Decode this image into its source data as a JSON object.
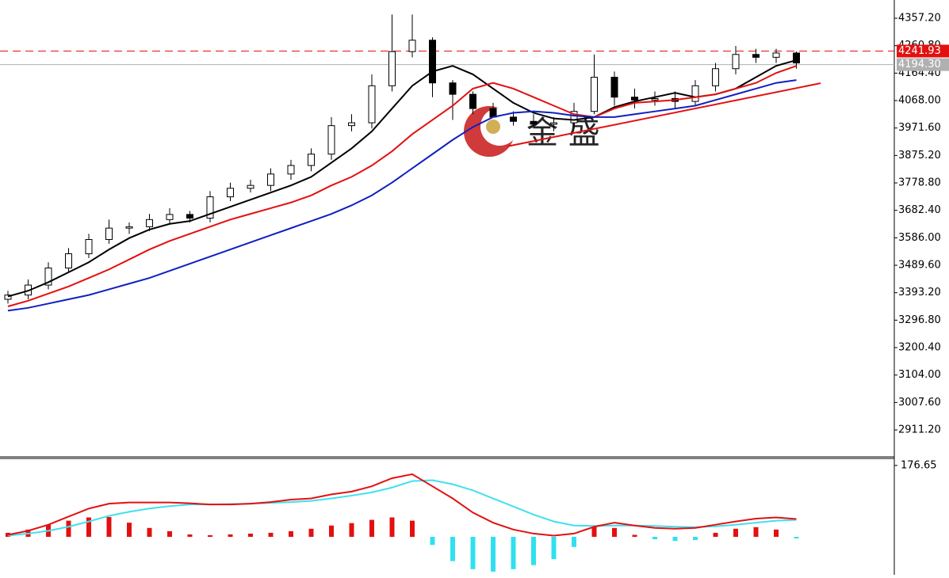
{
  "chart_data": [
    {
      "type": "candlestick",
      "watermark": "金 盛",
      "open": [
        3370,
        3385,
        3420,
        3480,
        3530,
        3580,
        3620,
        3625,
        3650,
        3668,
        3655,
        3730,
        3760,
        3770,
        3810,
        3840,
        3880,
        3980,
        3990,
        4120,
        4240,
        4280,
        4130,
        4090,
        4040,
        4010,
        3995,
        3985,
        3990,
        4030,
        4150,
        4080,
        4070,
        4075,
        4065,
        4120,
        4180,
        4230,
        4220,
        4235
      ],
      "high": [
        3400,
        3440,
        3500,
        3550,
        3600,
        3650,
        3640,
        3670,
        3690,
        3680,
        3750,
        3780,
        3790,
        3830,
        3860,
        3900,
        4010,
        4020,
        4160,
        4370,
        4370,
        4290,
        4140,
        4100,
        4060,
        4030,
        4020,
        4010,
        4060,
        4230,
        4170,
        4110,
        4100,
        4100,
        4140,
        4200,
        4260,
        4250,
        4250,
        4240
      ],
      "low": [
        3355,
        3370,
        3405,
        3465,
        3515,
        3565,
        3600,
        3610,
        3635,
        3640,
        3640,
        3715,
        3745,
        3750,
        3790,
        3820,
        3860,
        3960,
        3970,
        4100,
        4220,
        4080,
        4000,
        4020,
        4010,
        3980,
        3970,
        3960,
        3970,
        4020,
        4050,
        4040,
        4050,
        4040,
        4050,
        4100,
        4160,
        4200,
        4200,
        4180
      ],
      "close": [
        3385,
        3420,
        3480,
        3530,
        3580,
        3620,
        3625,
        3650,
        3668,
        3655,
        3730,
        3760,
        3770,
        3810,
        3840,
        3880,
        3980,
        3990,
        4120,
        4240,
        4280,
        4130,
        4090,
        4040,
        4010,
        3995,
        3985,
        3990,
        4030,
        4150,
        4080,
        4070,
        4075,
        4065,
        4120,
        4180,
        4230,
        4220,
        4235,
        4200
      ],
      "ma_lines": [
        {
          "color": "#000000",
          "values": [
            3380,
            3400,
            3430,
            3465,
            3500,
            3545,
            3585,
            3615,
            3635,
            3645,
            3670,
            3695,
            3720,
            3745,
            3770,
            3800,
            3850,
            3900,
            3960,
            4040,
            4120,
            4170,
            4190,
            4160,
            4110,
            4060,
            4025,
            4005,
            4000,
            4010,
            4045,
            4065,
            4080,
            4095,
            4080,
            4090,
            4110,
            4150,
            4190,
            4210
          ]
        },
        {
          "color": "#e31010",
          "values": [
            3345,
            3365,
            3390,
            3415,
            3445,
            3475,
            3510,
            3545,
            3575,
            3600,
            3625,
            3650,
            3670,
            3690,
            3710,
            3735,
            3770,
            3800,
            3840,
            3890,
            3950,
            4000,
            4050,
            4110,
            4130,
            4110,
            4080,
            4050,
            4020,
            4010,
            4040,
            4060,
            4065,
            4070,
            4080,
            4090,
            4110,
            4130,
            4165,
            4190
          ]
        },
        {
          "color": "#1020c0",
          "values": [
            3330,
            3340,
            3355,
            3370,
            3385,
            3405,
            3425,
            3445,
            3470,
            3495,
            3520,
            3545,
            3570,
            3595,
            3620,
            3645,
            3670,
            3700,
            3735,
            3780,
            3830,
            3880,
            3930,
            3975,
            4010,
            4025,
            4030,
            4025,
            4015,
            4010,
            4010,
            4020,
            4030,
            4040,
            4050,
            4070,
            4090,
            4110,
            4130,
            4140
          ]
        }
      ],
      "trendline": {
        "color": "#e31010",
        "x": [
          24.7,
          40.2
        ],
        "values": [
          3907,
          4129
        ]
      },
      "price_lines": [
        {
          "value": 4241.93,
          "label": "4241.93",
          "color": "#e31010",
          "style": "dashed"
        },
        {
          "value": 4194.3,
          "label": "4194.30",
          "color": "#b0b0b0",
          "style": "solid"
        }
      ],
      "ylim": [
        2816.7,
        4421.2
      ],
      "yticks": [
        {
          "value": 4357.2,
          "label": "4357.20"
        },
        {
          "value": 4260.8,
          "label": "4260.80"
        },
        {
          "value": 4164.4,
          "label": "4164.40"
        },
        {
          "value": 4068,
          "label": "4068.00"
        },
        {
          "value": 3971.6,
          "label": "3971.60"
        },
        {
          "value": 3875.2,
          "label": "3875.20"
        },
        {
          "value": 3778.8,
          "label": "3778.80"
        },
        {
          "value": 3682.4,
          "label": "3682.40"
        },
        {
          "value": 3586,
          "label": "3586.00"
        },
        {
          "value": 3489.6,
          "label": "3489.60"
        },
        {
          "value": 3393.2,
          "label": "3393.20"
        },
        {
          "value": 3296.8,
          "label": "3296.80"
        },
        {
          "value": 3200.4,
          "label": "3200.40"
        },
        {
          "value": 3104,
          "label": "3104.00"
        },
        {
          "value": 3007.6,
          "label": "3007.60"
        },
        {
          "value": 2911.2,
          "label": "2911.20"
        }
      ]
    },
    {
      "type": "macd",
      "histogram": [
        10,
        18,
        30,
        40,
        48,
        49,
        35,
        22,
        14,
        6,
        4,
        6,
        8,
        10,
        14,
        20,
        28,
        34,
        42,
        48,
        40,
        -20,
        -60,
        -80,
        -86,
        -80,
        -70,
        -55,
        -25,
        25,
        22,
        5,
        -6,
        -10,
        -8,
        10,
        20,
        24,
        18,
        -4
      ],
      "positive_color": "#e31010",
      "negative_color": "#30e0f0",
      "dif": {
        "color": "#e31010",
        "values": [
          5,
          15,
          30,
          50,
          70,
          82,
          85,
          85,
          85,
          83,
          80,
          80,
          82,
          86,
          92,
          95,
          105,
          112,
          125,
          145,
          155,
          125,
          95,
          60,
          35,
          18,
          8,
          3,
          8,
          25,
          35,
          28,
          22,
          20,
          22,
          30,
          38,
          45,
          48,
          44
        ]
      },
      "dea": {
        "color": "#40e0f0",
        "values": [
          3,
          8,
          15,
          25,
          38,
          52,
          62,
          70,
          76,
          80,
          80,
          81,
          82,
          84,
          86,
          89,
          95,
          102,
          110,
          122,
          138,
          140,
          130,
          115,
          95,
          75,
          55,
          38,
          28,
          27,
          28,
          28,
          27,
          25,
          24,
          26,
          30,
          35,
          40,
          42
        ]
      },
      "ylim": [
        -94,
        192
      ],
      "yticks": [
        176.65
      ]
    }
  ]
}
